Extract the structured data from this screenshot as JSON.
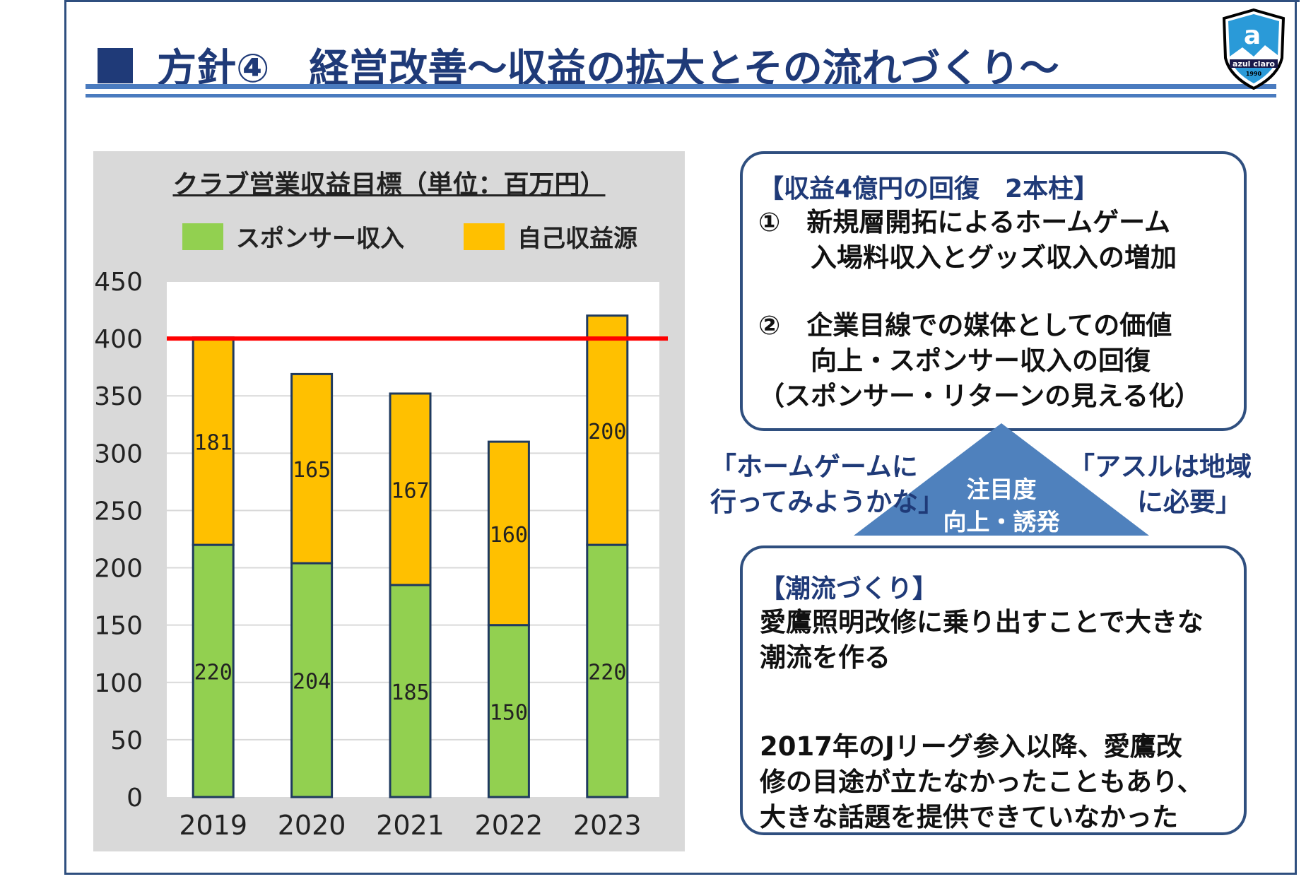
{
  "header": {
    "title": "方針④　経営改善～収益の拡大とその流れづくり～",
    "logo_text": "azul claro",
    "logo_year": "1990"
  },
  "chart_data": {
    "type": "bar",
    "stacked": true,
    "title": "クラブ営業収益目標（単位：百万円）",
    "categories": [
      "2019",
      "2020",
      "2021",
      "2022",
      "2023"
    ],
    "series": [
      {
        "name": "スポンサー収入",
        "color": "#92d050",
        "values": [
          220,
          204,
          185,
          150,
          220
        ]
      },
      {
        "name": "自己収益源",
        "color": "#ffc000",
        "values": [
          181,
          165,
          167,
          160,
          200
        ]
      }
    ],
    "reference_line": {
      "value": 400,
      "color": "#ff0000"
    },
    "ylim": [
      0,
      450
    ],
    "yticks": [
      0,
      50,
      100,
      150,
      200,
      250,
      300,
      350,
      400,
      450
    ],
    "grid": true,
    "legend": "top"
  },
  "box1": {
    "heading": "【収益4億円の回復　2本柱】",
    "item1": [
      "①　新規層開拓によるホームゲーム",
      "　　入場料収入とグッズ収入の増加"
    ],
    "item2": [
      "②　企業目線での媒体としての価値",
      "　　向上・スポンサー収入の回復",
      "（スポンサー・リターンの見える化）"
    ]
  },
  "triangle": {
    "line1": "注目度",
    "line2": "向上・誘発"
  },
  "quote_left": [
    "「ホームゲームに",
    "行ってみようかな」"
  ],
  "quote_right": [
    "「アスルは地域",
    "に必要」"
  ],
  "box2": {
    "heading": "【潮流づくり】",
    "lines1": [
      "愛鷹照明改修に乗り出すことで大きな",
      "潮流を作る"
    ],
    "lines2": [
      "2017年のJリーグ参入以降、愛鷹改",
      "修の目途が立たなかったこともあり、",
      "大きな話題を提供できていなかった"
    ]
  }
}
